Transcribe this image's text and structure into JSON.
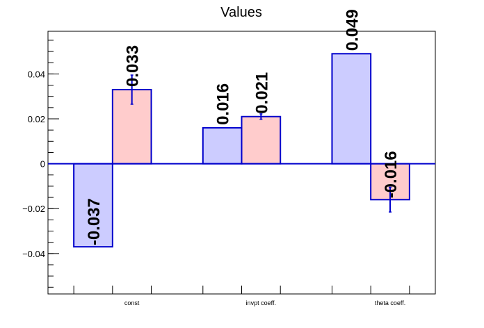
{
  "chart_data": {
    "type": "bar",
    "title": "Values",
    "categories": [
      "const",
      "invpt coeff.",
      "theta coeff."
    ],
    "series": [
      {
        "values": [
          -0.037,
          0.016,
          0.049
        ],
        "value_labels": [
          "-0.037",
          "0.016",
          "0.049"
        ],
        "errors": [
          0,
          0,
          0
        ],
        "fill": "#ccccff"
      },
      {
        "values": [
          0.033,
          0.021,
          -0.016
        ],
        "value_labels": [
          "0.033",
          "0.021",
          "-0.016"
        ],
        "errors": [
          0.0065,
          0.0012,
          0.0055
        ],
        "fill": "#ffcccc"
      }
    ],
    "edge_color": "#0000cc",
    "ylim": [
      -0.058,
      0.059
    ],
    "yticks": [
      -0.04,
      -0.02,
      0,
      0.02,
      0.04
    ],
    "ytick_labels": [
      "−0.04",
      "−0.02",
      "0",
      "0.02",
      "0.04"
    ],
    "grid": false,
    "legend": "none"
  }
}
